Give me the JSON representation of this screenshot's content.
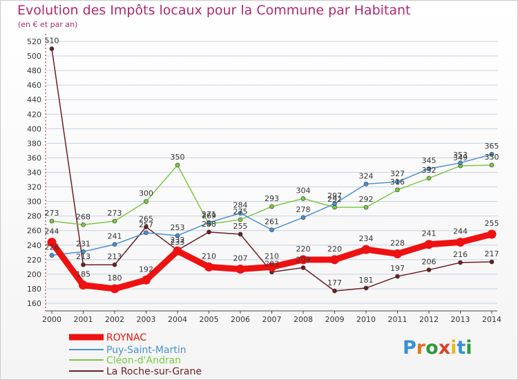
{
  "header": {
    "title": "Evolution des Impôts locaux pour la Commune par Habitant",
    "subtitle": "(en € et par an)"
  },
  "logo": {
    "text": "Proxiti",
    "letter_colors": [
      "#3a8fd6",
      "#e8731a",
      "#2e9a3a",
      "#d9422a",
      "#e8b81a",
      "#3a8fd6",
      "#2e9a3a"
    ]
  },
  "colors": {
    "title": "#b0286e",
    "grid": "#c8d0e0",
    "axis": "#444444"
  },
  "chart_data": {
    "type": "line",
    "title": "Evolution des Impôts locaux pour la Commune par Habitant",
    "subtitle": "(en € et par an)",
    "xlabel": "",
    "ylabel": "",
    "x": [
      "2000",
      "2001",
      "2002",
      "2003",
      "2004",
      "2005",
      "2006",
      "2007",
      "2008",
      "2009",
      "2010",
      "2011",
      "2012",
      "2013",
      "2014"
    ],
    "ylim": [
      160,
      520
    ],
    "yticks": [
      160,
      180,
      200,
      220,
      240,
      260,
      280,
      300,
      320,
      340,
      360,
      380,
      400,
      420,
      440,
      460,
      480,
      500,
      520
    ],
    "grid": "horizontal",
    "legend_position": "bottom-left",
    "series": [
      {
        "name": "ROYNAC",
        "color": "#ee1111",
        "values": [
          244,
          185,
          180,
          192,
          232,
          210,
          207,
          210,
          220,
          220,
          234,
          228,
          241,
          244,
          255
        ]
      },
      {
        "name": "Puy-Saint-Martin",
        "color": "#4a90d0",
        "values": [
          226,
          231,
          241,
          257,
          253,
          271,
          284,
          261,
          278,
          297,
          324,
          327,
          345,
          353,
          365
        ]
      },
      {
        "name": "Cléon-d'Andran",
        "color": "#7ac943",
        "values": [
          273,
          268,
          273,
          300,
          350,
          269,
          275,
          293,
          304,
          292,
          292,
          316,
          332,
          349,
          350
        ]
      },
      {
        "name": "La Roche-sur-Grane",
        "color": "#6b1e22",
        "values": [
          510,
          213,
          213,
          265,
          233,
          258,
          255,
          203,
          209,
          177,
          181,
          197,
          206,
          216,
          217
        ]
      }
    ]
  }
}
